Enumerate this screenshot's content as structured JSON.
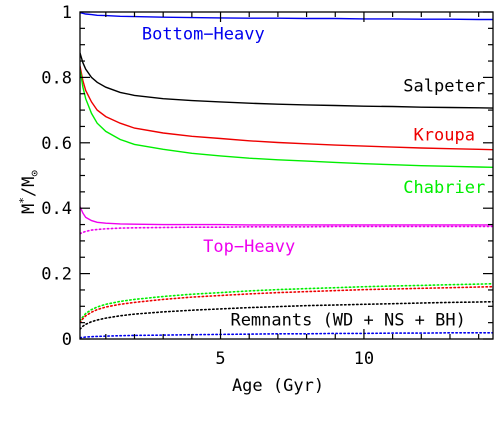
{
  "chart_data": {
    "type": "line",
    "xlabel": "Age (Gyr)",
    "ylabel_main": "M",
    "ylabel_sup": "*",
    "ylabel_mid": "/M",
    "ylabel_sub": "⊙",
    "xlim": [
      0.1,
      14.5
    ],
    "ylim": [
      0,
      1
    ],
    "x_ticks": [
      {
        "value": 5,
        "label": "5"
      },
      {
        "value": 10,
        "label": "10"
      }
    ],
    "y_ticks": [
      {
        "value": 0,
        "label": "0"
      },
      {
        "value": 0.2,
        "label": "0.2"
      },
      {
        "value": 0.4,
        "label": "0.4"
      },
      {
        "value": 0.6,
        "label": "0.6"
      },
      {
        "value": 0.8,
        "label": "0.8"
      },
      {
        "value": 1,
        "label": "1"
      }
    ],
    "x": [
      0.1,
      0.2,
      0.3,
      0.5,
      0.7,
      1,
      1.5,
      2,
      3,
      4,
      5,
      6,
      7,
      8,
      9,
      10,
      11,
      12,
      13,
      14,
      14.5
    ],
    "series": [
      {
        "name": "Bottom−Heavy",
        "style": "solid",
        "color": "#0000ee",
        "values": [
          0.998,
          0.996,
          0.994,
          0.992,
          0.99,
          0.989,
          0.987,
          0.986,
          0.984,
          0.983,
          0.982,
          0.981,
          0.981,
          0.98,
          0.98,
          0.979,
          0.979,
          0.978,
          0.978,
          0.977,
          0.977
        ]
      },
      {
        "name": "Salpeter",
        "style": "solid",
        "color": "#000000",
        "values": [
          0.875,
          0.845,
          0.825,
          0.8,
          0.785,
          0.77,
          0.754,
          0.745,
          0.735,
          0.729,
          0.725,
          0.721,
          0.718,
          0.716,
          0.714,
          0.712,
          0.711,
          0.709,
          0.708,
          0.707,
          0.706
        ]
      },
      {
        "name": "Kroupa",
        "style": "solid",
        "color": "#ee0000",
        "values": [
          0.835,
          0.79,
          0.76,
          0.725,
          0.7,
          0.68,
          0.66,
          0.645,
          0.63,
          0.62,
          0.613,
          0.606,
          0.601,
          0.597,
          0.593,
          0.59,
          0.587,
          0.584,
          0.582,
          0.58,
          0.579
        ]
      },
      {
        "name": "Chabrier",
        "style": "solid",
        "color": "#00ee00",
        "values": [
          0.825,
          0.77,
          0.735,
          0.69,
          0.66,
          0.635,
          0.61,
          0.595,
          0.58,
          0.568,
          0.56,
          0.553,
          0.548,
          0.544,
          0.54,
          0.536,
          0.533,
          0.53,
          0.528,
          0.526,
          0.525
        ]
      },
      {
        "name": "Top−Heavy",
        "style": "solid",
        "color": "#ee00ee",
        "values": [
          0.405,
          0.385,
          0.372,
          0.362,
          0.357,
          0.354,
          0.352,
          0.351,
          0.35,
          0.35,
          0.35,
          0.349,
          0.349,
          0.349,
          0.349,
          0.349,
          0.349,
          0.349,
          0.349,
          0.349,
          0.349
        ]
      },
      {
        "name": "",
        "style": "dotted",
        "color": "#ee00ee",
        "values": [
          0.322,
          0.326,
          0.329,
          0.333,
          0.335,
          0.337,
          0.339,
          0.34,
          0.341,
          0.342,
          0.342,
          0.343,
          0.343,
          0.343,
          0.344,
          0.344,
          0.344,
          0.344,
          0.344,
          0.344,
          0.344
        ]
      },
      {
        "name": "",
        "style": "dotted",
        "color": "#00ee00",
        "values": [
          0.055,
          0.068,
          0.078,
          0.09,
          0.098,
          0.106,
          0.115,
          0.121,
          0.13,
          0.137,
          0.142,
          0.147,
          0.151,
          0.154,
          0.157,
          0.16,
          0.162,
          0.164,
          0.166,
          0.168,
          0.169
        ]
      },
      {
        "name": "",
        "style": "dotted",
        "color": "#ee0000",
        "values": [
          0.05,
          0.062,
          0.071,
          0.082,
          0.09,
          0.098,
          0.106,
          0.112,
          0.121,
          0.128,
          0.133,
          0.138,
          0.142,
          0.145,
          0.148,
          0.151,
          0.153,
          0.155,
          0.157,
          0.159,
          0.16
        ]
      },
      {
        "name": "",
        "style": "dotted",
        "color": "#000000",
        "values": [
          0.03,
          0.039,
          0.045,
          0.053,
          0.058,
          0.064,
          0.071,
          0.076,
          0.083,
          0.088,
          0.092,
          0.096,
          0.099,
          0.102,
          0.104,
          0.106,
          0.108,
          0.11,
          0.112,
          0.113,
          0.114
        ]
      },
      {
        "name": "",
        "style": "dotted",
        "color": "#0000ee",
        "values": [
          0.004,
          0.005,
          0.006,
          0.007,
          0.008,
          0.009,
          0.01,
          0.011,
          0.012,
          0.013,
          0.014,
          0.015,
          0.016,
          0.016,
          0.017,
          0.017,
          0.018,
          0.018,
          0.019,
          0.019,
          0.019
        ]
      }
    ],
    "annotations": [
      {
        "text": "Bottom−Heavy",
        "color": "#0000ee",
        "x": 4.4,
        "y": 0.935
      },
      {
        "text": "Salpeter",
        "color": "#000000",
        "x": 12.8,
        "y": 0.775
      },
      {
        "text": "Kroupa",
        "color": "#ee0000",
        "x": 12.8,
        "y": 0.625
      },
      {
        "text": "Chabrier",
        "color": "#00ee00",
        "x": 12.8,
        "y": 0.465
      },
      {
        "text": "Top−Heavy",
        "color": "#ee00ee",
        "x": 6.0,
        "y": 0.285
      },
      {
        "text": "Remnants (WD + NS + BH)",
        "color": "#000000",
        "x": 9.45,
        "y": 0.06
      }
    ]
  }
}
